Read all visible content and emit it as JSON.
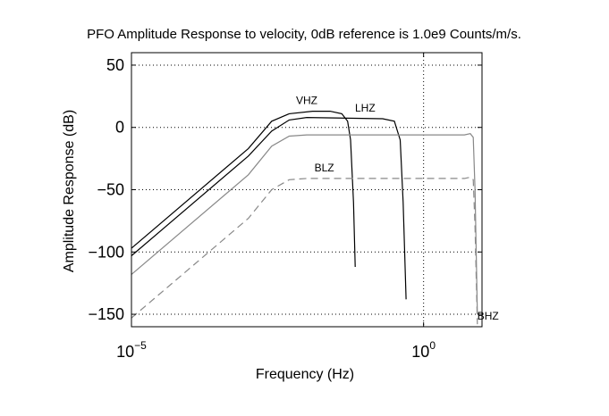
{
  "chart_data": {
    "type": "line",
    "title": "PFO Amplitude Response to velocity, 0dB reference is 1.0e9 Counts/m/s.",
    "xlabel": "Frequency (Hz)",
    "ylabel": "Amplitude Response (dB)",
    "xscale": "log",
    "xlim_log10": [
      -5,
      1
    ],
    "ylim": [
      -160,
      60
    ],
    "yticks": [
      50,
      0,
      -50,
      -100,
      -150
    ],
    "ytick_labels": [
      "50",
      "0",
      "−50",
      "−100",
      "−150"
    ],
    "xticks_log10": [
      -5,
      0
    ],
    "xtick_labels": [
      {
        "base": "10",
        "exp": "−5"
      },
      {
        "base": "10",
        "exp": "0"
      }
    ],
    "grid": true,
    "series": [
      {
        "name": "VHZ",
        "color": "#000000",
        "dash": "solid",
        "points": [
          [
            -5,
            -97
          ],
          [
            -3,
            -17
          ],
          [
            -2.6,
            5
          ],
          [
            -2.3,
            11
          ],
          [
            -1.9,
            13
          ],
          [
            -1.6,
            13
          ],
          [
            -1.4,
            11
          ],
          [
            -1.3,
            5
          ],
          [
            -1.25,
            -10
          ],
          [
            -1.2,
            -60
          ],
          [
            -1.17,
            -112
          ]
        ]
      },
      {
        "name": "LHZ",
        "color": "#000000",
        "dash": "solid",
        "points": [
          [
            -5,
            -103
          ],
          [
            -3,
            -23
          ],
          [
            -2.6,
            -3
          ],
          [
            -2.3,
            6
          ],
          [
            -2,
            8
          ],
          [
            -0.7,
            7
          ],
          [
            -0.5,
            5
          ],
          [
            -0.4,
            -10
          ],
          [
            -0.35,
            -60
          ],
          [
            -0.3,
            -138
          ]
        ]
      },
      {
        "name": "BHZ",
        "color": "#888888",
        "dash": "solid",
        "points": [
          [
            -5,
            -118
          ],
          [
            -3,
            -38
          ],
          [
            -2.6,
            -15
          ],
          [
            -2.3,
            -7
          ],
          [
            -2,
            -6
          ],
          [
            0.7,
            -6
          ],
          [
            0.8,
            -5
          ],
          [
            0.85,
            -8
          ],
          [
            0.88,
            -50
          ],
          [
            0.9,
            -100
          ],
          [
            0.92,
            -150
          ]
        ]
      },
      {
        "name": "BLZ",
        "color": "#888888",
        "dash": "dashed",
        "points": [
          [
            -5,
            -153
          ],
          [
            -3,
            -73
          ],
          [
            -2.6,
            -50
          ],
          [
            -2.3,
            -42
          ],
          [
            -2,
            -41
          ],
          [
            0.7,
            -41
          ],
          [
            0.8,
            -40
          ],
          [
            0.85,
            -42
          ],
          [
            0.88,
            -80
          ],
          [
            0.9,
            -120
          ],
          [
            0.92,
            -158
          ]
        ]
      }
    ]
  }
}
